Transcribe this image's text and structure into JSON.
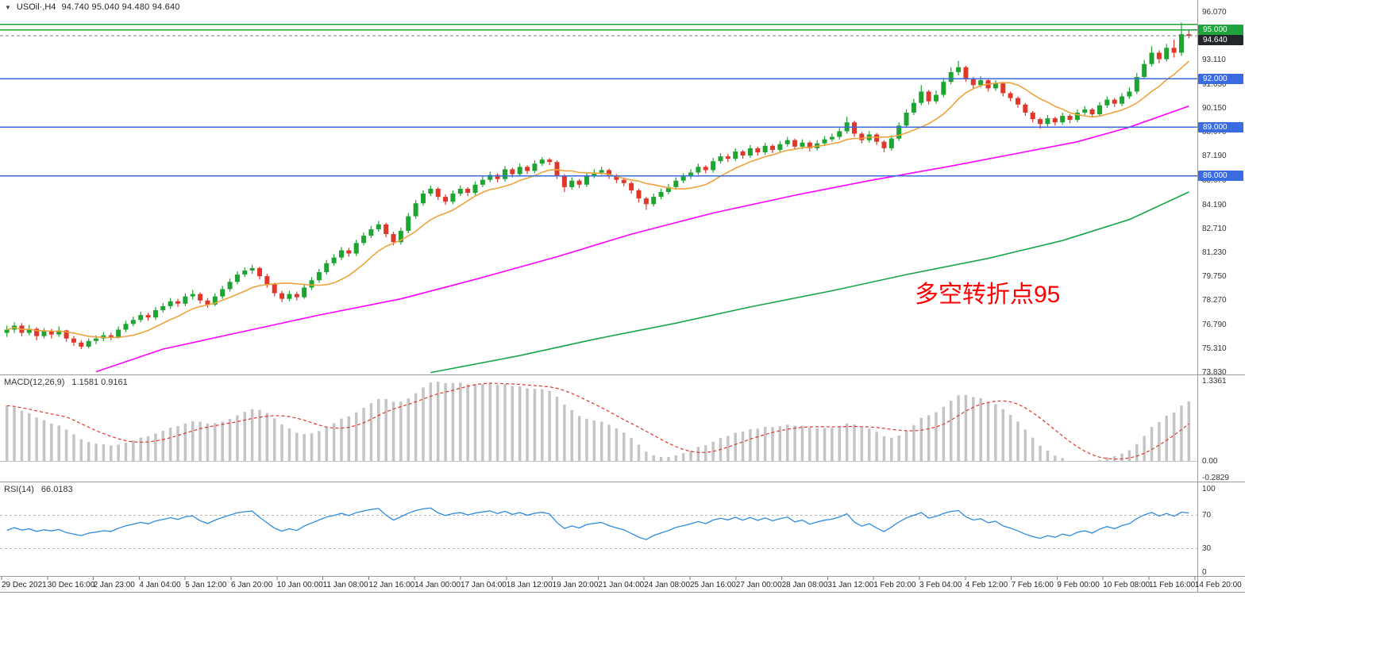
{
  "header": {
    "collapse_glyph": "▼",
    "symbol_period": "USOil·,H4",
    "quote": "94.740 95.040 94.480 94.640"
  },
  "colors": {
    "up": "#1ea431",
    "down": "#e0372b",
    "background": "#ffffff",
    "frame": "#9a9a9a"
  },
  "chart_data": {
    "type": "candlestick",
    "title": "USOil·,H4",
    "y_axis": {
      "range": [
        73.83,
        96.07
      ],
      "ticks": [
        [
          "96.070",
          96.07
        ],
        [
          "93.110",
          93.11
        ],
        [
          "91.630",
          91.63
        ],
        [
          "90.150",
          90.15
        ],
        [
          "88.670",
          88.67
        ],
        [
          "87.190",
          87.19
        ],
        [
          "85.670",
          85.67
        ],
        [
          "84.190",
          84.19
        ],
        [
          "82.710",
          82.71
        ],
        [
          "81.230",
          81.23
        ],
        [
          "79.750",
          79.75
        ],
        [
          "78.270",
          78.27
        ],
        [
          "76.790",
          76.79
        ],
        [
          "75.310",
          75.31
        ],
        [
          "73.830",
          73.83
        ]
      ],
      "tags": [
        [
          "95.000",
          95.0,
          "#1fa33c"
        ],
        [
          "94.640",
          94.64,
          "#23262b"
        ],
        [
          "92.000",
          92.0,
          "#3a6be0"
        ],
        [
          "89.000",
          89.0,
          "#3a6be0"
        ],
        [
          "86.000",
          86.0,
          "#3a6be0"
        ]
      ]
    },
    "x_axis": {
      "labels": [
        "29 Dec 2021",
        "30 Dec 16:00",
        "2 Jan 23:00",
        "4 Jan 04:00",
        "5 Jan 12:00",
        "6 Jan 20:00",
        "10 Jan 00:00",
        "11 Jan 08:00",
        "12 Jan 16:00",
        "14 Jan 00:00",
        "17 Jan 04:00",
        "18 Jan 12:00",
        "19 Jan 20:00",
        "21 Jan 04:00",
        "24 Jan 08:00",
        "25 Jan 16:00",
        "27 Jan 00:00",
        "28 Jan 08:00",
        "31 Jan 12:00",
        "1 Feb 20:00",
        "3 Feb 04:00",
        "4 Feb 12:00",
        "7 Feb 16:00",
        "9 Feb 00:00",
        "10 Feb 08:00",
        "11 Feb 16:00",
        "14 Feb 20:00"
      ]
    },
    "levels": [
      [
        95.35,
        "#1ea431",
        "solid"
      ],
      [
        95.0,
        "#1ea431",
        "solid"
      ],
      [
        94.64,
        "#777777",
        "dash"
      ],
      [
        92.0,
        "#3a6be0",
        "solid"
      ],
      [
        89.0,
        "#3a6be0",
        "solid"
      ],
      [
        86.0,
        "#3a6be0",
        "solid"
      ]
    ],
    "overlays": [
      {
        "name": "ma-fast-orange",
        "color": "#eea33c",
        "type": "sma",
        "period": 10
      },
      {
        "name": "ma-mid-magenta",
        "color": "#ff00ff",
        "type": "points",
        "points": [
          [
            12,
            73.9
          ],
          [
            21,
            75.3
          ],
          [
            32,
            76.4
          ],
          [
            42,
            77.4
          ],
          [
            53,
            78.4
          ],
          [
            63,
            79.6
          ],
          [
            74,
            81.0
          ],
          [
            84,
            82.4
          ],
          [
            95,
            83.7
          ],
          [
            106,
            84.8
          ],
          [
            116,
            85.7
          ],
          [
            127,
            86.6
          ],
          [
            135,
            87.3
          ],
          [
            144,
            88.1
          ],
          [
            151,
            89.0
          ],
          [
            159,
            90.3
          ]
        ]
      },
      {
        "name": "ma-slow-green",
        "color": "#17a54a",
        "type": "points",
        "points": [
          [
            57,
            73.85
          ],
          [
            69,
            74.9
          ],
          [
            79,
            75.9
          ],
          [
            90,
            76.9
          ],
          [
            100,
            77.9
          ],
          [
            111,
            78.9
          ],
          [
            121,
            79.9
          ],
          [
            132,
            80.9
          ],
          [
            142,
            82.0
          ],
          [
            151,
            83.3
          ],
          [
            159,
            85.0
          ]
        ]
      }
    ],
    "candles": [
      [
        76.3,
        76.75,
        76.05,
        76.5
      ],
      [
        76.5,
        76.95,
        76.3,
        76.75
      ],
      [
        76.75,
        76.9,
        76.1,
        76.3
      ],
      [
        76.3,
        76.8,
        76.15,
        76.55
      ],
      [
        76.55,
        76.65,
        75.85,
        76.1
      ],
      [
        76.1,
        76.6,
        75.95,
        76.4
      ],
      [
        76.4,
        76.55,
        75.95,
        76.2
      ],
      [
        76.2,
        76.7,
        76.05,
        76.45
      ],
      [
        76.45,
        76.5,
        75.75,
        75.95
      ],
      [
        75.95,
        76.1,
        75.5,
        75.7
      ],
      [
        75.7,
        75.85,
        75.3,
        75.45
      ],
      [
        75.45,
        75.95,
        75.35,
        75.8
      ],
      [
        75.8,
        76.15,
        75.6,
        75.95
      ],
      [
        75.95,
        76.35,
        75.8,
        76.15
      ],
      [
        76.15,
        76.3,
        75.85,
        76.05
      ],
      [
        76.05,
        76.7,
        75.95,
        76.5
      ],
      [
        76.5,
        77.05,
        76.35,
        76.85
      ],
      [
        76.85,
        77.3,
        76.7,
        77.1
      ],
      [
        77.1,
        77.6,
        76.95,
        77.4
      ],
      [
        77.4,
        77.55,
        77.05,
        77.25
      ],
      [
        77.25,
        77.9,
        77.1,
        77.7
      ],
      [
        77.7,
        78.15,
        77.55,
        77.95
      ],
      [
        77.95,
        78.45,
        77.8,
        78.25
      ],
      [
        78.25,
        78.4,
        77.9,
        78.1
      ],
      [
        78.1,
        78.75,
        77.95,
        78.55
      ],
      [
        78.55,
        78.95,
        78.35,
        78.7
      ],
      [
        78.7,
        78.8,
        78.1,
        78.3
      ],
      [
        78.3,
        78.45,
        77.85,
        78.05
      ],
      [
        78.05,
        78.75,
        77.95,
        78.55
      ],
      [
        78.55,
        79.2,
        78.4,
        79.0
      ],
      [
        79.0,
        79.65,
        78.85,
        79.45
      ],
      [
        79.45,
        80.1,
        79.3,
        79.9
      ],
      [
        79.9,
        80.35,
        79.75,
        80.15
      ],
      [
        80.15,
        80.5,
        79.95,
        80.3
      ],
      [
        80.3,
        80.4,
        79.6,
        79.8
      ],
      [
        79.8,
        79.95,
        79.1,
        79.3
      ],
      [
        79.3,
        79.4,
        78.55,
        78.75
      ],
      [
        78.75,
        78.9,
        78.2,
        78.4
      ],
      [
        78.4,
        78.9,
        78.25,
        78.7
      ],
      [
        78.7,
        78.85,
        78.3,
        78.5
      ],
      [
        78.5,
        79.3,
        78.4,
        79.1
      ],
      [
        79.1,
        79.75,
        78.95,
        79.55
      ],
      [
        79.55,
        80.25,
        79.4,
        80.05
      ],
      [
        80.05,
        80.8,
        79.9,
        80.6
      ],
      [
        80.6,
        81.15,
        80.45,
        80.95
      ],
      [
        80.95,
        81.6,
        80.8,
        81.4
      ],
      [
        81.4,
        81.55,
        81.0,
        81.2
      ],
      [
        81.2,
        82.05,
        81.05,
        81.85
      ],
      [
        81.85,
        82.5,
        81.7,
        82.3
      ],
      [
        82.3,
        82.9,
        82.15,
        82.7
      ],
      [
        82.7,
        83.2,
        82.55,
        83.0
      ],
      [
        83.0,
        83.1,
        82.2,
        82.4
      ],
      [
        82.4,
        82.55,
        81.7,
        81.9
      ],
      [
        81.9,
        82.8,
        81.75,
        82.6
      ],
      [
        82.6,
        83.7,
        82.45,
        83.5
      ],
      [
        83.5,
        84.5,
        83.35,
        84.3
      ],
      [
        84.3,
        85.1,
        84.15,
        84.9
      ],
      [
        84.9,
        85.4,
        84.75,
        85.2
      ],
      [
        85.2,
        85.3,
        84.5,
        84.7
      ],
      [
        84.7,
        84.85,
        84.2,
        84.4
      ],
      [
        84.4,
        85.1,
        84.25,
        84.9
      ],
      [
        84.9,
        85.4,
        84.75,
        85.2
      ],
      [
        85.2,
        85.3,
        84.75,
        84.95
      ],
      [
        84.95,
        85.65,
        84.8,
        85.45
      ],
      [
        85.45,
        85.95,
        85.3,
        85.75
      ],
      [
        85.75,
        86.25,
        85.6,
        86.05
      ],
      [
        86.05,
        86.15,
        85.6,
        85.8
      ],
      [
        85.8,
        86.6,
        85.65,
        86.4
      ],
      [
        86.4,
        86.5,
        85.9,
        86.1
      ],
      [
        86.1,
        86.75,
        85.95,
        86.55
      ],
      [
        86.55,
        86.65,
        86.1,
        86.3
      ],
      [
        86.3,
        86.95,
        86.15,
        86.75
      ],
      [
        86.75,
        87.15,
        86.6,
        87.0
      ],
      [
        87.0,
        87.1,
        86.65,
        86.85
      ],
      [
        86.85,
        86.95,
        85.8,
        86.0
      ],
      [
        86.0,
        86.1,
        85.0,
        85.3
      ],
      [
        85.3,
        85.9,
        85.15,
        85.7
      ],
      [
        85.7,
        85.8,
        85.25,
        85.45
      ],
      [
        85.45,
        86.2,
        85.3,
        86.0
      ],
      [
        86.0,
        86.4,
        85.85,
        86.2
      ],
      [
        86.2,
        86.55,
        86.05,
        86.35
      ],
      [
        86.35,
        86.45,
        85.8,
        86.0
      ],
      [
        86.0,
        86.1,
        85.55,
        85.75
      ],
      [
        85.75,
        85.9,
        85.35,
        85.55
      ],
      [
        85.55,
        85.65,
        84.9,
        85.1
      ],
      [
        85.1,
        85.2,
        84.35,
        84.6
      ],
      [
        84.6,
        84.7,
        83.9,
        84.25
      ],
      [
        84.25,
        84.9,
        84.1,
        84.7
      ],
      [
        84.7,
        85.2,
        84.55,
        85.0
      ],
      [
        85.0,
        85.5,
        84.85,
        85.3
      ],
      [
        85.3,
        85.9,
        85.15,
        85.7
      ],
      [
        85.7,
        86.15,
        85.55,
        85.95
      ],
      [
        85.95,
        86.4,
        85.8,
        86.2
      ],
      [
        86.2,
        86.75,
        86.05,
        86.55
      ],
      [
        86.55,
        86.65,
        86.15,
        86.35
      ],
      [
        86.35,
        87.1,
        86.2,
        86.9
      ],
      [
        86.9,
        87.4,
        86.75,
        87.2
      ],
      [
        87.2,
        87.35,
        86.85,
        87.05
      ],
      [
        87.05,
        87.7,
        86.9,
        87.5
      ],
      [
        87.5,
        87.6,
        87.05,
        87.25
      ],
      [
        87.25,
        87.9,
        87.1,
        87.7
      ],
      [
        87.7,
        87.8,
        87.25,
        87.45
      ],
      [
        87.45,
        88.05,
        87.3,
        87.85
      ],
      [
        87.85,
        87.95,
        87.4,
        87.6
      ],
      [
        87.6,
        88.15,
        87.45,
        87.95
      ],
      [
        87.95,
        88.4,
        87.8,
        88.2
      ],
      [
        88.2,
        88.3,
        87.6,
        87.8
      ],
      [
        87.8,
        88.25,
        87.65,
        88.05
      ],
      [
        88.05,
        88.15,
        87.5,
        87.7
      ],
      [
        87.7,
        88.2,
        87.55,
        88.0
      ],
      [
        88.0,
        88.45,
        87.85,
        88.25
      ],
      [
        88.25,
        88.6,
        88.1,
        88.4
      ],
      [
        88.4,
        88.95,
        88.25,
        88.75
      ],
      [
        88.75,
        89.65,
        88.6,
        89.3
      ],
      [
        89.3,
        89.4,
        88.4,
        88.6
      ],
      [
        88.6,
        88.7,
        88.0,
        88.2
      ],
      [
        88.2,
        88.75,
        88.05,
        88.55
      ],
      [
        88.55,
        88.65,
        87.9,
        88.1
      ],
      [
        88.1,
        88.2,
        87.45,
        87.7
      ],
      [
        87.7,
        88.5,
        87.55,
        88.3
      ],
      [
        88.3,
        89.3,
        88.15,
        89.1
      ],
      [
        89.1,
        90.1,
        88.95,
        89.9
      ],
      [
        89.9,
        90.75,
        89.75,
        90.5
      ],
      [
        90.5,
        91.6,
        90.35,
        91.2
      ],
      [
        91.2,
        91.3,
        90.4,
        90.6
      ],
      [
        90.6,
        91.25,
        90.45,
        91.0
      ],
      [
        91.0,
        92.05,
        90.85,
        91.8
      ],
      [
        91.8,
        92.7,
        91.65,
        92.4
      ],
      [
        92.4,
        93.1,
        92.2,
        92.7
      ],
      [
        92.7,
        92.8,
        91.8,
        92.0
      ],
      [
        92.0,
        92.1,
        91.35,
        91.6
      ],
      [
        91.6,
        92.15,
        91.45,
        91.9
      ],
      [
        91.9,
        92.0,
        91.2,
        91.4
      ],
      [
        91.4,
        91.9,
        91.25,
        91.7
      ],
      [
        91.7,
        91.8,
        90.9,
        91.1
      ],
      [
        91.1,
        91.2,
        90.6,
        90.8
      ],
      [
        90.8,
        90.9,
        90.2,
        90.4
      ],
      [
        90.4,
        90.5,
        89.7,
        89.9
      ],
      [
        89.9,
        90.0,
        89.3,
        89.5
      ],
      [
        89.5,
        89.6,
        88.9,
        89.2
      ],
      [
        89.2,
        89.75,
        89.05,
        89.55
      ],
      [
        89.55,
        89.65,
        89.1,
        89.3
      ],
      [
        89.3,
        89.9,
        89.15,
        89.7
      ],
      [
        89.7,
        89.8,
        89.25,
        89.45
      ],
      [
        89.45,
        90.1,
        89.3,
        89.9
      ],
      [
        89.9,
        90.3,
        89.75,
        90.1
      ],
      [
        90.1,
        90.2,
        89.6,
        89.8
      ],
      [
        89.8,
        90.55,
        89.65,
        90.35
      ],
      [
        90.35,
        90.9,
        90.2,
        90.7
      ],
      [
        90.7,
        90.8,
        90.25,
        90.45
      ],
      [
        90.45,
        91.1,
        90.3,
        90.9
      ],
      [
        90.9,
        91.45,
        90.75,
        91.2
      ],
      [
        91.2,
        92.35,
        91.05,
        92.1
      ],
      [
        92.1,
        93.15,
        91.95,
        92.9
      ],
      [
        92.9,
        94.0,
        92.75,
        93.6
      ],
      [
        93.6,
        93.75,
        92.95,
        93.2
      ],
      [
        93.2,
        94.15,
        93.05,
        93.9
      ],
      [
        93.9,
        94.4,
        93.3,
        93.6
      ],
      [
        93.6,
        95.46,
        93.4,
        94.74
      ],
      [
        94.74,
        95.04,
        94.48,
        94.64
      ]
    ],
    "sub_charts": [
      {
        "type": "macd-histogram",
        "label": "MACD(12,26,9)",
        "values": "1.1581 0.9161",
        "range": [
          -0.2829,
          1.3361
        ],
        "axis_labels": [
          "1.3361",
          "0.00",
          "-0.2829"
        ],
        "histogram_color": "#c4c4c4",
        "signal_color": "#e0372b",
        "params": [
          12,
          26,
          9
        ]
      },
      {
        "type": "rsi-line",
        "label": "RSI(14)",
        "value": "66.0183",
        "range": [
          0,
          100
        ],
        "axis_labels": [
          "100",
          "70",
          "30",
          "0"
        ],
        "levels": [
          70,
          30
        ],
        "line_color": "#2f8be0",
        "params": [
          14
        ]
      }
    ],
    "annotation": {
      "text": "多空转折点95",
      "color": "#ff0000"
    }
  }
}
